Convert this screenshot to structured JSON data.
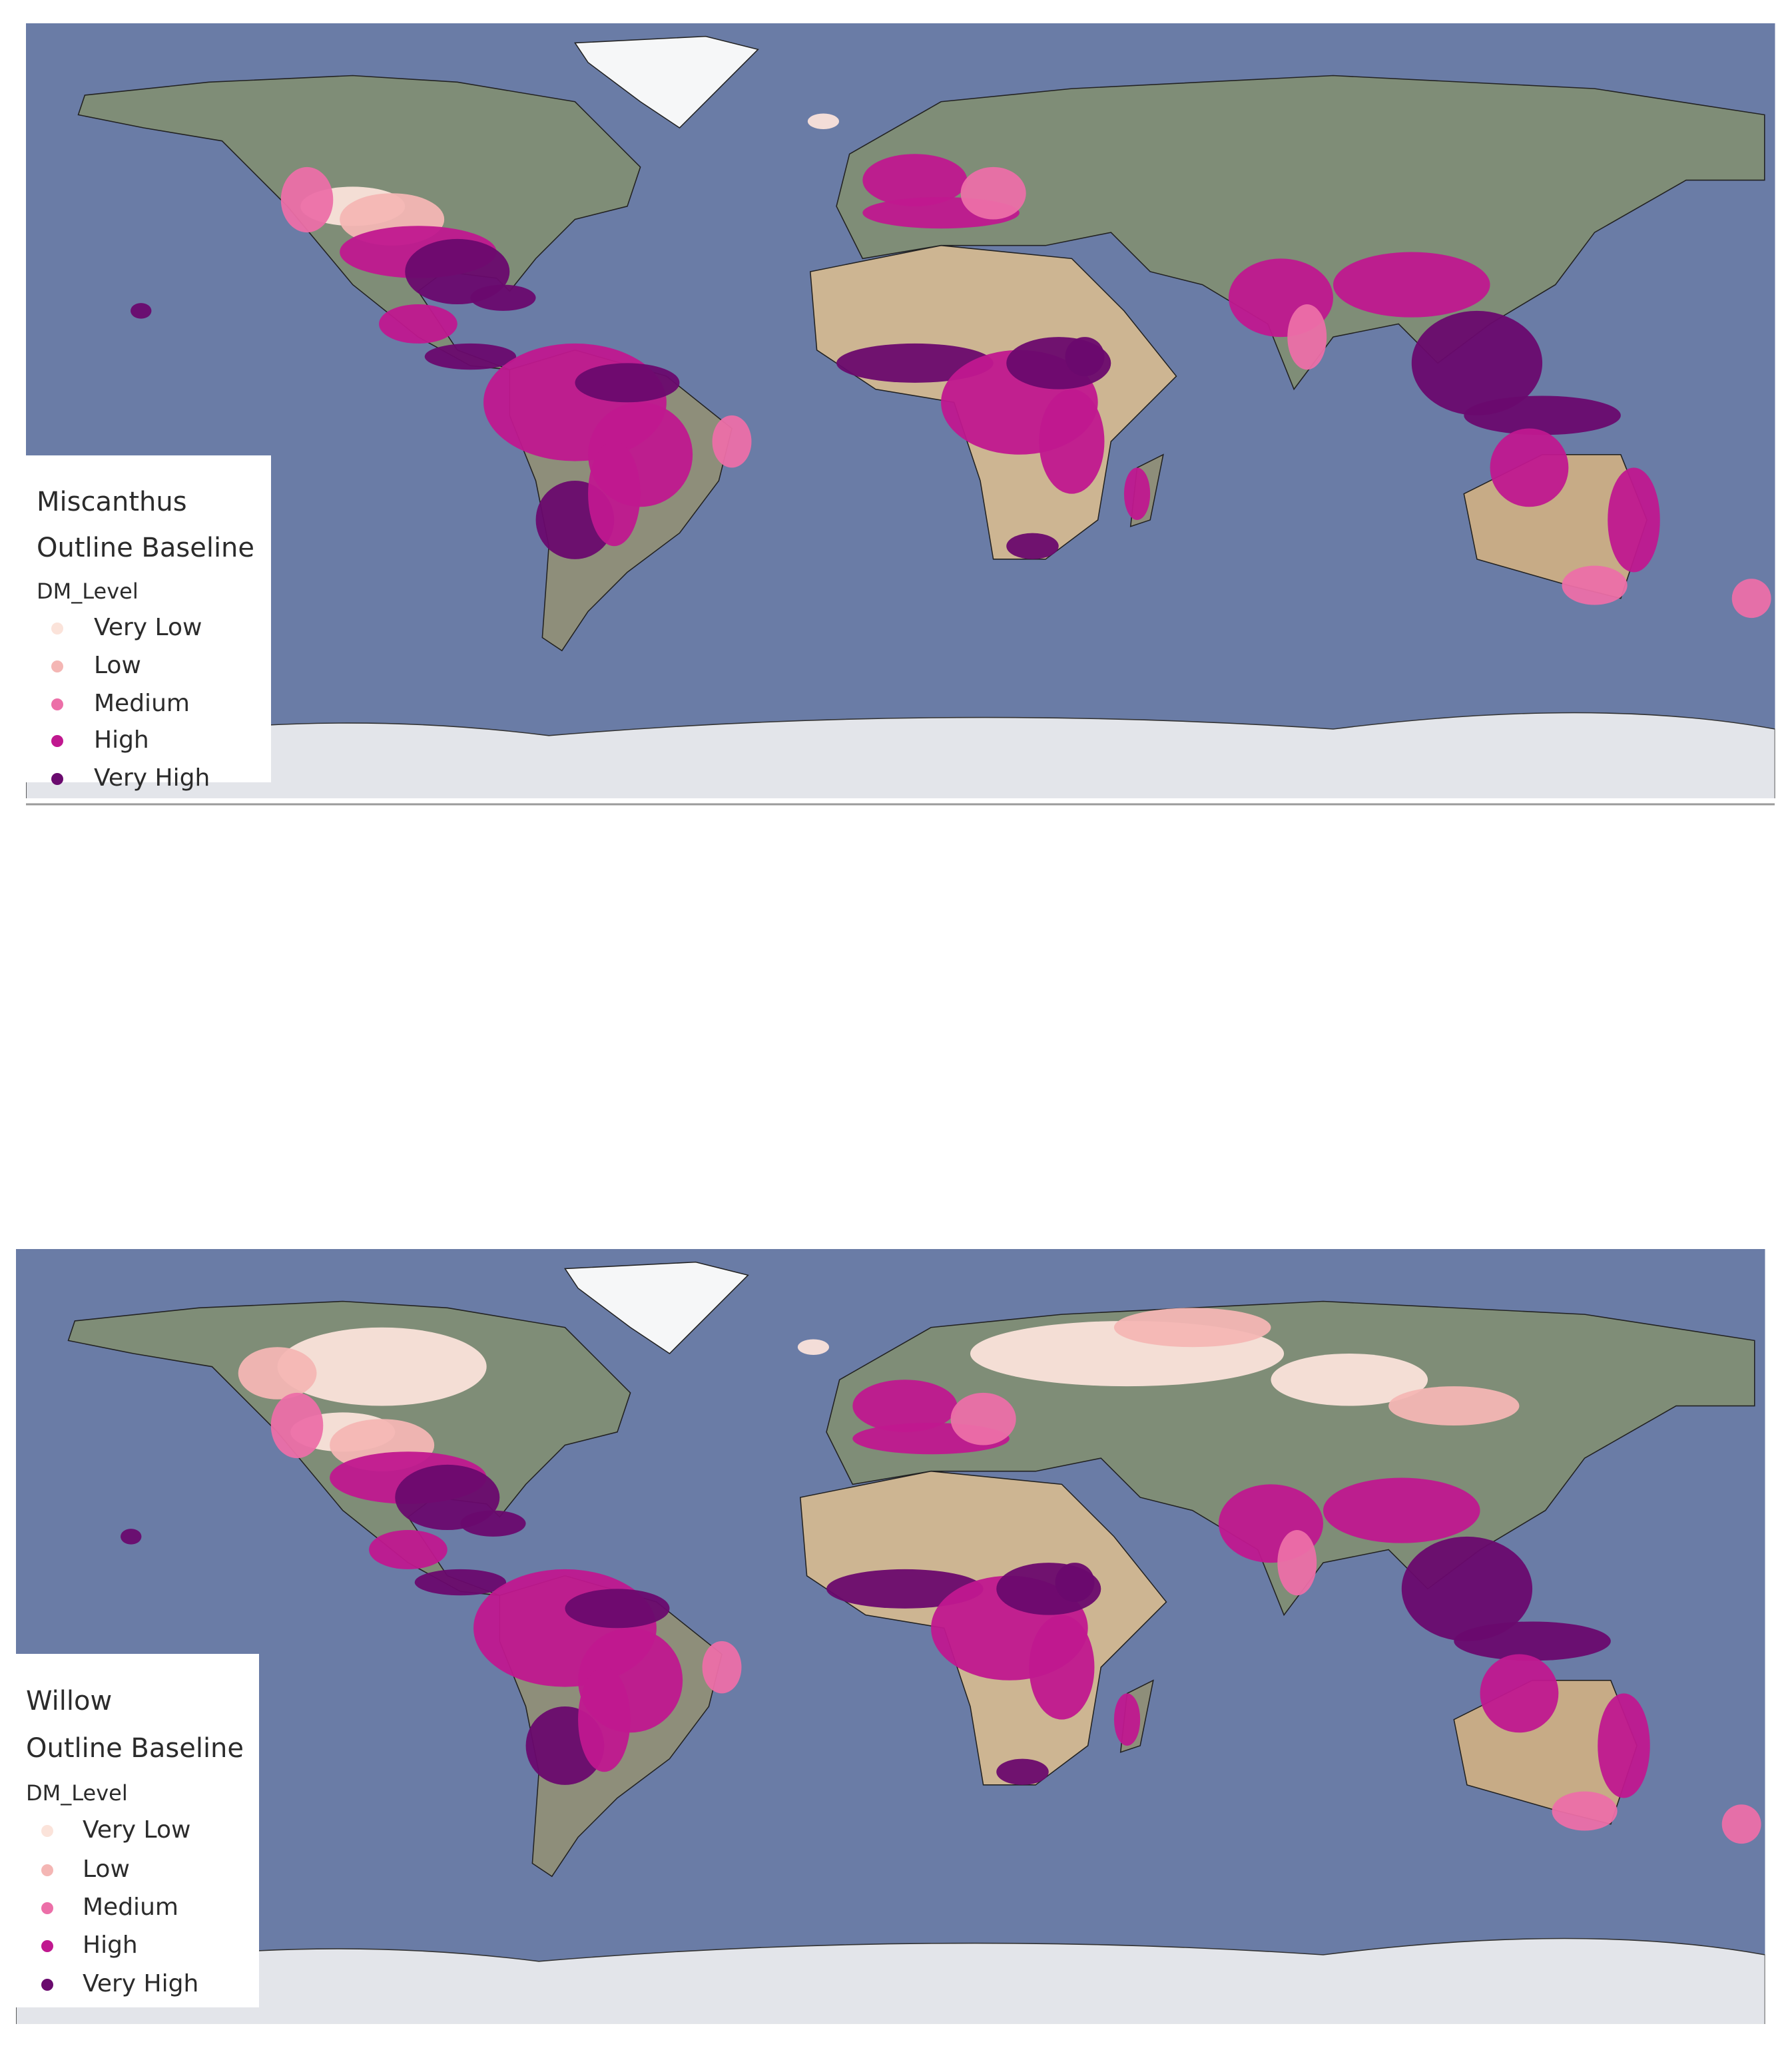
{
  "maps": [
    {
      "title": "Miscanthus",
      "subtitle": "Outline Baseline",
      "legend": {
        "title": "DM_Level",
        "items": [
          {
            "label": "Very Low",
            "color": "#fbe3da"
          },
          {
            "label": "Low",
            "color": "#f4b6b4"
          },
          {
            "label": "Medium",
            "color": "#ec6fa8"
          },
          {
            "label": "High",
            "color": "#c0188f"
          },
          {
            "label": "Very High",
            "color": "#6a0a6e"
          }
        ]
      }
    },
    {
      "title": "Willow",
      "subtitle": "Outline Baseline",
      "legend": {
        "title": "DM_Level",
        "items": [
          {
            "label": "Very Low",
            "color": "#fbe3da"
          },
          {
            "label": "Low",
            "color": "#f4b6b4"
          },
          {
            "label": "Medium",
            "color": "#ec6fa8"
          },
          {
            "label": "High",
            "color": "#c0188f"
          },
          {
            "label": "Very High",
            "color": "#6a0a6e"
          }
        ]
      }
    }
  ]
}
